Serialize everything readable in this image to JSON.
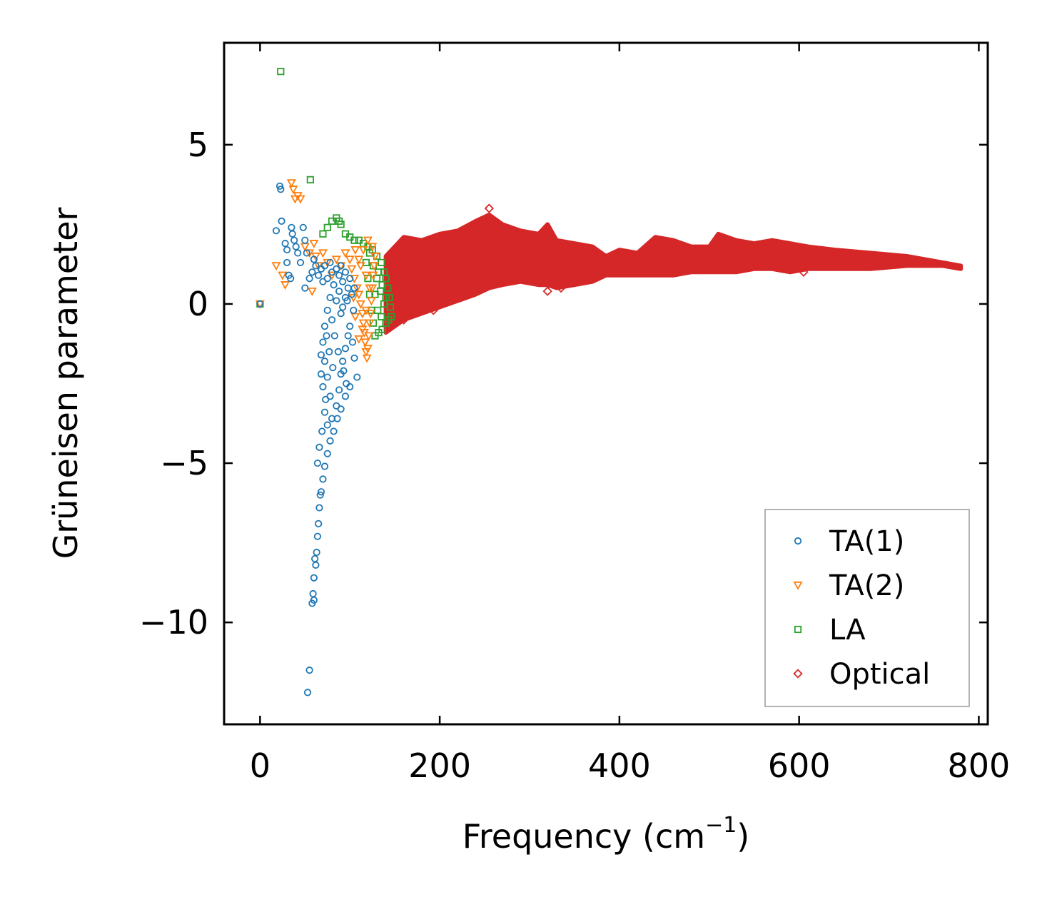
{
  "chart_data": {
    "type": "scatter",
    "title": "",
    "xlabel": "Frequency (cm",
    "xlabel_sup": "−1",
    "xlabel_close": ")",
    "ylabel": "Grüneisen parameter",
    "xlim": [
      -40,
      810
    ],
    "ylim": [
      -13.2,
      8.2
    ],
    "xticks": [
      0,
      200,
      400,
      600,
      800
    ],
    "xtick_labels": [
      "0",
      "200",
      "400",
      "600",
      "800"
    ],
    "yticks": [
      -10,
      -5,
      0,
      5
    ],
    "ytick_labels": [
      "−10",
      "−5",
      "0",
      "5"
    ],
    "grid": false,
    "legend_position": "bottom-right",
    "series": [
      {
        "name": "TA(1)",
        "marker": "circle",
        "color": "#1f77b4",
        "points": [
          [
            0,
            0
          ],
          [
            22,
            3.7
          ],
          [
            23,
            3.6
          ],
          [
            24,
            2.6
          ],
          [
            18,
            2.3
          ],
          [
            28,
            1.9
          ],
          [
            30,
            1.7
          ],
          [
            35,
            2.4
          ],
          [
            36,
            2.2
          ],
          [
            38,
            2.0
          ],
          [
            40,
            1.8
          ],
          [
            42,
            1.6
          ],
          [
            45,
            1.3
          ],
          [
            48,
            2.4
          ],
          [
            50,
            2.0
          ],
          [
            52,
            1.6
          ],
          [
            30,
            1.3
          ],
          [
            32,
            0.9
          ],
          [
            34,
            0.8
          ],
          [
            50,
            0.5
          ],
          [
            55,
            0.8
          ],
          [
            58,
            1.0
          ],
          [
            60,
            1.4
          ],
          [
            62,
            1.2
          ],
          [
            65,
            0.9
          ],
          [
            68,
            1.1
          ],
          [
            70,
            0.7
          ],
          [
            72,
            1.2
          ],
          [
            75,
            0.8
          ],
          [
            78,
            1.3
          ],
          [
            80,
            1.0
          ],
          [
            82,
            0.6
          ],
          [
            85,
            1.1
          ],
          [
            88,
            0.9
          ],
          [
            90,
            1.2
          ],
          [
            92,
            0.7
          ],
          [
            95,
            1.0
          ],
          [
            98,
            0.5
          ],
          [
            100,
            0.8
          ],
          [
            102,
            0.3
          ],
          [
            104,
            -0.2
          ],
          [
            105,
            0.5
          ],
          [
            95,
            0.2
          ],
          [
            90,
            -0.3
          ],
          [
            85,
            0.1
          ],
          [
            80,
            -0.5
          ],
          [
            78,
            0.2
          ],
          [
            75,
            -0.2
          ],
          [
            72,
            -0.7
          ],
          [
            70,
            -1.2
          ],
          [
            68,
            -1.6
          ],
          [
            72,
            -1.8
          ],
          [
            75,
            -2.3
          ],
          [
            70,
            -2.6
          ],
          [
            68,
            -2.2
          ],
          [
            73,
            -3.0
          ],
          [
            78,
            -2.9
          ],
          [
            72,
            -3.4
          ],
          [
            75,
            -3.8
          ],
          [
            80,
            -3.6
          ],
          [
            85,
            -3.2
          ],
          [
            88,
            -2.7
          ],
          [
            90,
            -2.2
          ],
          [
            92,
            -1.8
          ],
          [
            95,
            -1.4
          ],
          [
            98,
            -1.0
          ],
          [
            100,
            -0.7
          ],
          [
            103,
            -1.2
          ],
          [
            105,
            -1.7
          ],
          [
            108,
            -2.3
          ],
          [
            100,
            -2.6
          ],
          [
            95,
            -2.9
          ],
          [
            90,
            -3.3
          ],
          [
            86,
            -3.6
          ],
          [
            82,
            -4.0
          ],
          [
            78,
            -4.3
          ],
          [
            75,
            -4.7
          ],
          [
            72,
            -5.1
          ],
          [
            70,
            -5.5
          ],
          [
            68,
            -5.9
          ],
          [
            66,
            -6.4
          ],
          [
            65,
            -6.9
          ],
          [
            64,
            -7.3
          ],
          [
            63,
            -7.8
          ],
          [
            62,
            -8.2
          ],
          [
            60,
            -8.6
          ],
          [
            59,
            -9.1
          ],
          [
            58,
            -9.4
          ],
          [
            55,
            -11.5
          ],
          [
            53,
            -12.2
          ],
          [
            88,
            0.4
          ],
          [
            92,
            -0.1
          ],
          [
            97,
            0.1
          ],
          [
            83,
            -1.0
          ],
          [
            87,
            -1.5
          ],
          [
            93,
            -2.1
          ],
          [
            96,
            -2.5
          ],
          [
            81,
            -2.0
          ],
          [
            77,
            -1.5
          ],
          [
            74,
            -1.0
          ],
          [
            66,
            -4.5
          ],
          [
            69,
            -4.0
          ],
          [
            64,
            -5.0
          ],
          [
            67,
            -6.0
          ],
          [
            61,
            -8.0
          ],
          [
            60,
            -9.3
          ]
        ]
      },
      {
        "name": "TA(2)",
        "marker": "triangle_down",
        "color": "#ff7f0e",
        "points": [
          [
            0,
            0
          ],
          [
            18,
            1.2
          ],
          [
            25,
            0.9
          ],
          [
            28,
            0.6
          ],
          [
            35,
            3.8
          ],
          [
            37,
            3.6
          ],
          [
            39,
            3.3
          ],
          [
            42,
            3.4
          ],
          [
            45,
            3.3
          ],
          [
            50,
            1.8
          ],
          [
            55,
            1.6
          ],
          [
            58,
            0.4
          ],
          [
            60,
            1.9
          ],
          [
            62,
            1.5
          ],
          [
            65,
            1.2
          ],
          [
            70,
            1.6
          ],
          [
            75,
            1.3
          ],
          [
            80,
            0.9
          ],
          [
            85,
            1.4
          ],
          [
            90,
            1.2
          ],
          [
            95,
            1.6
          ],
          [
            100,
            1.4
          ],
          [
            102,
            1.1
          ],
          [
            105,
            0.8
          ],
          [
            108,
            0.5
          ],
          [
            110,
            0.3
          ],
          [
            112,
            0.0
          ],
          [
            114,
            -0.3
          ],
          [
            115,
            -0.6
          ],
          [
            116,
            -0.9
          ],
          [
            117,
            -1.2
          ],
          [
            118,
            -1.5
          ],
          [
            119,
            -1.7
          ],
          [
            120,
            -1.4
          ],
          [
            121,
            -1.0
          ],
          [
            122,
            -0.6
          ],
          [
            123,
            -0.3
          ],
          [
            124,
            0.1
          ],
          [
            125,
            0.5
          ],
          [
            126,
            0.9
          ],
          [
            127,
            1.2
          ],
          [
            128,
            1.5
          ],
          [
            125,
            1.8
          ],
          [
            120,
            2.0
          ],
          [
            115,
            1.7
          ],
          [
            110,
            1.4
          ],
          [
            106,
            1.7
          ],
          [
            112,
            1.2
          ],
          [
            118,
            0.9
          ],
          [
            122,
            0.5
          ],
          [
            118,
            -0.2
          ],
          [
            114,
            -0.8
          ],
          [
            110,
            -1.1
          ],
          [
            106,
            -0.4
          ],
          [
            104,
            0.2
          ]
        ]
      },
      {
        "name": "LA",
        "marker": "square",
        "color": "#2ca02c",
        "points": [
          [
            0,
            0
          ],
          [
            23,
            7.3
          ],
          [
            56,
            3.9
          ],
          [
            70,
            2.2
          ],
          [
            75,
            2.4
          ],
          [
            80,
            2.6
          ],
          [
            85,
            2.7
          ],
          [
            88,
            2.6
          ],
          [
            90,
            2.5
          ],
          [
            95,
            2.2
          ],
          [
            100,
            2.1
          ],
          [
            105,
            2.0
          ],
          [
            110,
            2.0
          ],
          [
            115,
            1.9
          ],
          [
            120,
            1.8
          ],
          [
            125,
            1.7
          ],
          [
            130,
            1.5
          ],
          [
            135,
            1.3
          ],
          [
            138,
            1.0
          ],
          [
            140,
            0.8
          ],
          [
            142,
            0.5
          ],
          [
            144,
            0.2
          ],
          [
            145,
            -0.1
          ],
          [
            146,
            -0.4
          ],
          [
            143,
            -0.5
          ],
          [
            140,
            -0.6
          ],
          [
            136,
            -0.8
          ],
          [
            132,
            -0.9
          ],
          [
            128,
            -1.0
          ],
          [
            126,
            -0.6
          ],
          [
            124,
            -0.2
          ],
          [
            122,
            0.3
          ],
          [
            120,
            0.8
          ],
          [
            118,
            1.3
          ],
          [
            122,
            1.6
          ],
          [
            126,
            1.2
          ],
          [
            130,
            0.8
          ],
          [
            134,
            0.4
          ],
          [
            138,
            0.0
          ],
          [
            135,
            -0.4
          ],
          [
            131,
            -0.2
          ],
          [
            128,
            0.3
          ],
          [
            132,
            1.0
          ],
          [
            136,
            0.6
          ],
          [
            140,
            0.2
          ]
        ]
      },
      {
        "name": "Optical",
        "marker": "diamond",
        "color": "#d62728",
        "points": [
          [
            255,
            3.0
          ],
          [
            193,
            -0.2
          ],
          [
            160,
            -0.5
          ],
          [
            320,
            0.4
          ],
          [
            335,
            0.5
          ],
          [
            590,
            1.2
          ],
          [
            605,
            1.0
          ],
          [
            380,
            1.2
          ],
          [
            330,
            0.6
          ]
        ],
        "band": {
          "x": [
            140,
            160,
            180,
            200,
            220,
            240,
            255,
            270,
            290,
            310,
            320,
            330,
            350,
            370,
            385,
            400,
            420,
            440,
            460,
            480,
            500,
            510,
            530,
            550,
            570,
            590,
            610,
            640,
            680,
            720,
            760,
            780
          ],
          "upper": [
            1.5,
            2.1,
            2.0,
            2.2,
            2.3,
            2.6,
            2.8,
            2.5,
            2.3,
            2.2,
            2.5,
            2.0,
            1.9,
            1.8,
            1.5,
            1.7,
            1.6,
            2.1,
            2.0,
            1.8,
            1.8,
            2.2,
            2.0,
            1.9,
            2.0,
            1.9,
            1.8,
            1.7,
            1.6,
            1.5,
            1.3,
            1.2
          ],
          "lower": [
            -0.9,
            -0.5,
            -0.3,
            -0.1,
            0.1,
            0.3,
            0.5,
            0.6,
            0.7,
            0.6,
            0.6,
            0.5,
            0.6,
            0.7,
            0.9,
            0.9,
            0.9,
            0.9,
            0.9,
            1.0,
            1.0,
            1.0,
            1.0,
            1.1,
            1.1,
            1.0,
            1.1,
            1.1,
            1.1,
            1.2,
            1.2,
            1.1
          ]
        }
      }
    ]
  }
}
